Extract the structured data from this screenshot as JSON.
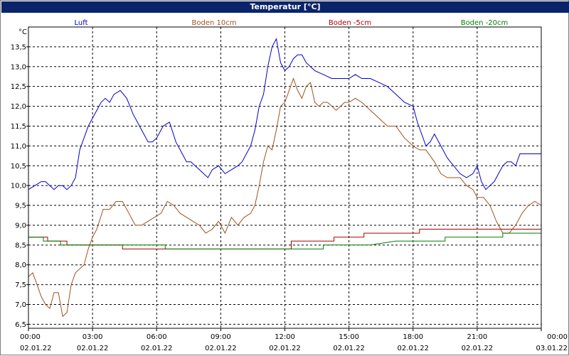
{
  "window": {
    "title": "Temperatur [°C]"
  },
  "chart_data": {
    "type": "line",
    "title": "Temperatur [°C]",
    "ylabel": "°C",
    "ylim": [
      6.4,
      14.0
    ],
    "xlim": [
      0,
      24
    ],
    "yticks": [
      6.5,
      7.0,
      7.5,
      8.0,
      8.5,
      9.0,
      9.5,
      10.0,
      10.5,
      11.0,
      11.5,
      12.0,
      12.5,
      13.0,
      13.5
    ],
    "ytick_labels": [
      "6,5",
      "7,0",
      "7,5",
      "8,0",
      "8,5",
      "9,0",
      "9,5",
      "10,0",
      "10,5",
      "11,0",
      "11,5",
      "12,0",
      "12,5",
      "13,0",
      "13,5"
    ],
    "xticks": [
      {
        "time": "00:00",
        "date": "02.01.22"
      },
      {
        "time": "03:00",
        "date": "02.01.22"
      },
      {
        "time": "06:00",
        "date": "02.01.22"
      },
      {
        "time": "09:00",
        "date": "02.01.22"
      },
      {
        "time": "12:00",
        "date": "02.01.22"
      },
      {
        "time": "15:00",
        "date": "02.01.22"
      },
      {
        "time": "18:00",
        "date": "02.01.22"
      },
      {
        "time": "21:00",
        "date": "02.01.22"
      },
      {
        "time": "00:00",
        "date": "03.01.22"
      }
    ],
    "grid": true,
    "series": [
      {
        "name": "Luft",
        "color": "#0000cc",
        "x": [
          0,
          0.3,
          0.6,
          0.8,
          1.0,
          1.2,
          1.4,
          1.6,
          1.8,
          2.0,
          2.2,
          2.4,
          2.6,
          2.8,
          3.0,
          3.2,
          3.4,
          3.6,
          3.8,
          4.0,
          4.3,
          4.6,
          4.9,
          5.2,
          5.4,
          5.6,
          5.8,
          6.0,
          6.3,
          6.6,
          6.9,
          7.2,
          7.4,
          7.6,
          7.8,
          8.0,
          8.2,
          8.4,
          8.6,
          8.9,
          9.2,
          9.5,
          9.8,
          10.0,
          10.2,
          10.4,
          10.6,
          10.8,
          11.0,
          11.2,
          11.4,
          11.6,
          11.8,
          12.0,
          12.2,
          12.4,
          12.6,
          12.8,
          13.0,
          13.4,
          13.8,
          14.2,
          14.6,
          15.0,
          15.3,
          15.6,
          16.0,
          16.4,
          16.8,
          17.2,
          17.6,
          18.0,
          18.2,
          18.4,
          18.6,
          18.8,
          19.0,
          19.3,
          19.6,
          19.9,
          20.2,
          20.5,
          20.8,
          21.0,
          21.2,
          21.4,
          21.6,
          21.8,
          22.0,
          22.2,
          22.4,
          22.6,
          22.8,
          23.0,
          23.2,
          23.4,
          23.6,
          23.8,
          24.0
        ],
        "y": [
          9.9,
          10.0,
          10.1,
          10.1,
          10.0,
          9.9,
          10.0,
          10.0,
          9.9,
          10.0,
          10.2,
          10.9,
          11.2,
          11.5,
          11.7,
          11.9,
          12.1,
          12.2,
          12.1,
          12.3,
          12.4,
          12.2,
          11.8,
          11.5,
          11.3,
          11.1,
          11.1,
          11.2,
          11.5,
          11.6,
          11.1,
          10.8,
          10.6,
          10.6,
          10.5,
          10.4,
          10.3,
          10.2,
          10.4,
          10.5,
          10.3,
          10.4,
          10.5,
          10.6,
          10.8,
          11.0,
          11.4,
          12.0,
          12.3,
          13.0,
          13.5,
          13.7,
          13.1,
          12.9,
          13.0,
          13.2,
          13.3,
          13.3,
          13.1,
          12.9,
          12.8,
          12.7,
          12.7,
          12.7,
          12.8,
          12.7,
          12.7,
          12.6,
          12.5,
          12.3,
          12.1,
          12.0,
          11.6,
          11.3,
          11.0,
          11.1,
          11.3,
          11.0,
          10.7,
          10.5,
          10.3,
          10.2,
          10.3,
          10.5,
          10.1,
          9.9,
          10.0,
          10.1,
          10.3,
          10.5,
          10.6,
          10.6,
          10.5,
          10.8,
          10.8,
          10.8,
          10.8,
          10.8,
          10.8
        ]
      },
      {
        "name": "Boden 10cm",
        "color": "#a0521e",
        "x": [
          0,
          0.2,
          0.4,
          0.6,
          0.8,
          1.0,
          1.2,
          1.4,
          1.6,
          1.8,
          2.0,
          2.2,
          2.4,
          2.6,
          2.8,
          3.0,
          3.2,
          3.5,
          3.8,
          4.1,
          4.4,
          4.7,
          5.0,
          5.3,
          5.6,
          5.9,
          6.2,
          6.5,
          6.8,
          7.1,
          7.4,
          7.7,
          8.0,
          8.3,
          8.6,
          8.9,
          9.2,
          9.5,
          9.8,
          10.1,
          10.4,
          10.6,
          10.8,
          11.0,
          11.2,
          11.4,
          11.6,
          11.8,
          12.0,
          12.2,
          12.4,
          12.6,
          12.8,
          13.0,
          13.2,
          13.4,
          13.6,
          13.8,
          14.0,
          14.2,
          14.4,
          14.6,
          14.8,
          15.0,
          15.3,
          15.6,
          16.0,
          16.4,
          16.8,
          17.2,
          17.6,
          18.0,
          18.3,
          18.6,
          19.0,
          19.3,
          19.6,
          19.9,
          20.2,
          20.5,
          20.8,
          21.0,
          21.3,
          21.6,
          21.9,
          22.2,
          22.5,
          22.8,
          23.1,
          23.4,
          23.7,
          24.0
        ],
        "y": [
          7.7,
          7.8,
          7.5,
          7.2,
          7.0,
          6.9,
          7.3,
          7.3,
          6.7,
          6.8,
          7.5,
          7.8,
          7.9,
          8.0,
          8.4,
          8.7,
          8.9,
          9.4,
          9.4,
          9.6,
          9.6,
          9.3,
          9.0,
          9.0,
          9.1,
          9.2,
          9.3,
          9.6,
          9.5,
          9.3,
          9.2,
          9.1,
          9.0,
          8.8,
          8.9,
          9.1,
          8.8,
          9.2,
          9.0,
          9.2,
          9.3,
          9.5,
          10.0,
          10.6,
          11.0,
          10.9,
          11.4,
          12.0,
          12.1,
          12.4,
          12.7,
          12.4,
          12.2,
          12.5,
          12.6,
          12.1,
          12.0,
          12.1,
          12.1,
          12.0,
          11.9,
          12.0,
          12.1,
          12.1,
          12.2,
          12.1,
          11.9,
          11.7,
          11.5,
          11.5,
          11.2,
          11.0,
          10.9,
          10.9,
          10.6,
          10.3,
          10.2,
          10.2,
          10.2,
          10.0,
          9.9,
          9.7,
          9.7,
          9.5,
          9.1,
          8.8,
          8.8,
          9.0,
          9.3,
          9.5,
          9.6,
          9.5
        ]
      },
      {
        "name": "Boden -5cm",
        "color": "#aa0000",
        "x": [
          0,
          0.9,
          0.9,
          1.8,
          1.8,
          4.4,
          4.4,
          12.3,
          12.3,
          13.8,
          13.8,
          14.3,
          14.3,
          15.2,
          15.2,
          15.7,
          15.7,
          16.5,
          16.5,
          18.3,
          18.3,
          19.0,
          19.0,
          20.5,
          20.5,
          22.2,
          22.2,
          24.0
        ],
        "y": [
          8.7,
          8.7,
          8.6,
          8.6,
          8.5,
          8.5,
          8.4,
          8.4,
          8.6,
          8.6,
          8.6,
          8.6,
          8.7,
          8.7,
          8.7,
          8.7,
          8.8,
          8.8,
          8.8,
          8.8,
          8.9,
          8.9,
          8.9,
          8.9,
          8.9,
          8.9,
          8.9,
          8.9
        ]
      },
      {
        "name": "Boden -20cm",
        "color": "#008000",
        "x": [
          0,
          0.7,
          0.7,
          1.5,
          1.5,
          6.4,
          6.4,
          13.8,
          13.8,
          14.3,
          14.3,
          16.0,
          16.0,
          17.2,
          17.2,
          19.5,
          19.5,
          22.2,
          22.2,
          24.0
        ],
        "y": [
          8.7,
          8.7,
          8.6,
          8.6,
          8.5,
          8.5,
          8.4,
          8.4,
          8.5,
          8.5,
          8.5,
          8.5,
          8.5,
          8.6,
          8.6,
          8.6,
          8.7,
          8.7,
          8.8,
          8.8
        ]
      }
    ]
  }
}
